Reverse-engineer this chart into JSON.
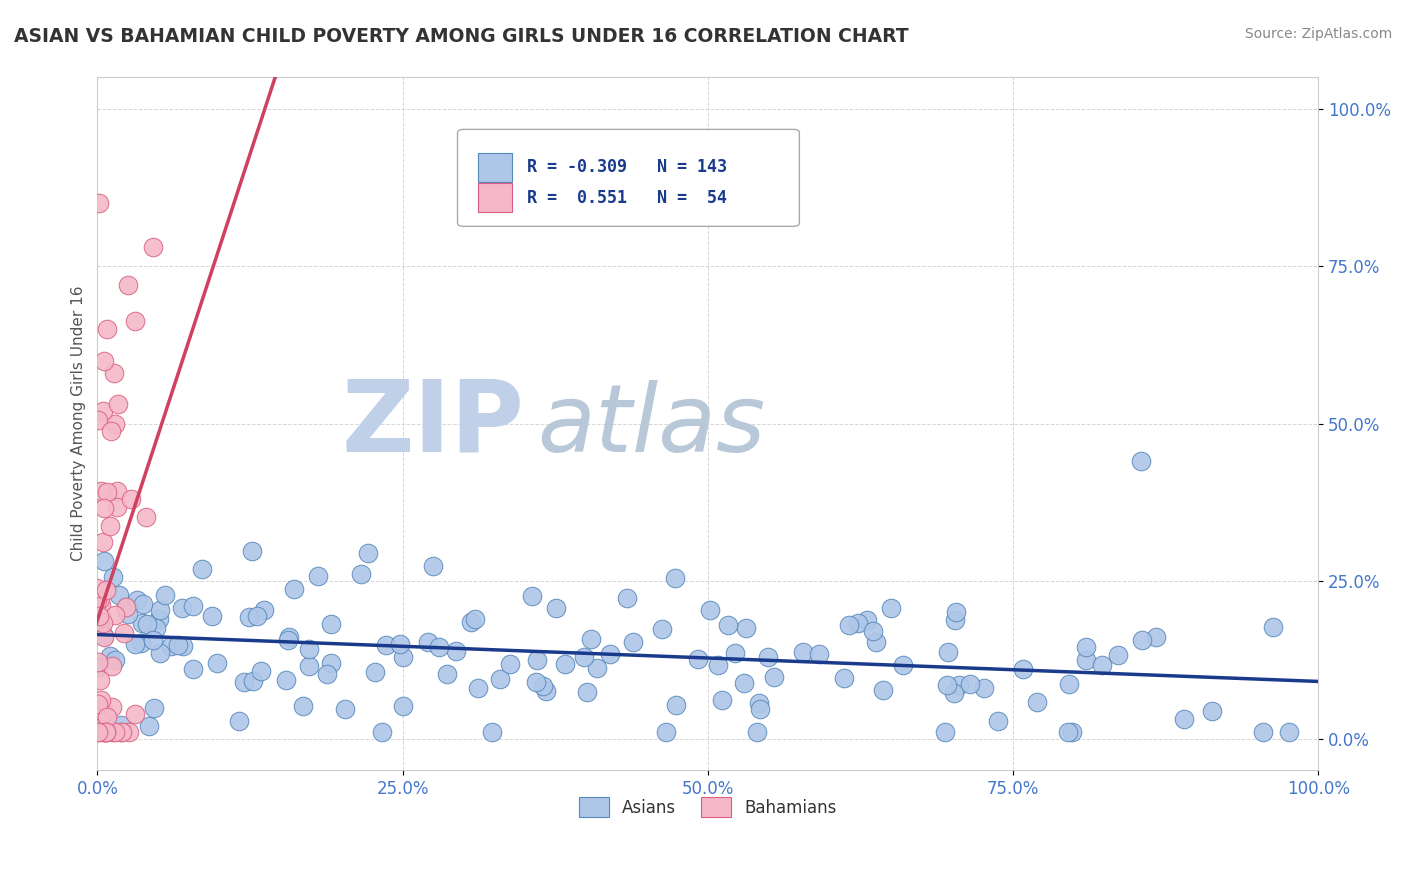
{
  "title": "ASIAN VS BAHAMIAN CHILD POVERTY AMONG GIRLS UNDER 16 CORRELATION CHART",
  "source": "Source: ZipAtlas.com",
  "ylabel": "Child Poverty Among Girls Under 16",
  "xlim": [
    0,
    1
  ],
  "ylim": [
    -0.05,
    1.05
  ],
  "asian_color": "#aec6e8",
  "asian_edge_color": "#5588bb",
  "bahamian_color": "#f5b8c8",
  "bahamian_edge_color": "#d96080",
  "trend_asian_color": "#1a3a8c",
  "trend_bahamian_color": "#d04060",
  "R_asian": -0.309,
  "N_asian": 143,
  "R_bahamian": 0.551,
  "N_bahamian": 54,
  "background_color": "#ffffff",
  "grid_color": "#cccccc",
  "title_color": "#333333",
  "axis_label_color": "#555555",
  "tick_label_color": "#4477cc",
  "watermark_zip_color": "#c0d0e8",
  "watermark_atlas_color": "#b8c8d8"
}
